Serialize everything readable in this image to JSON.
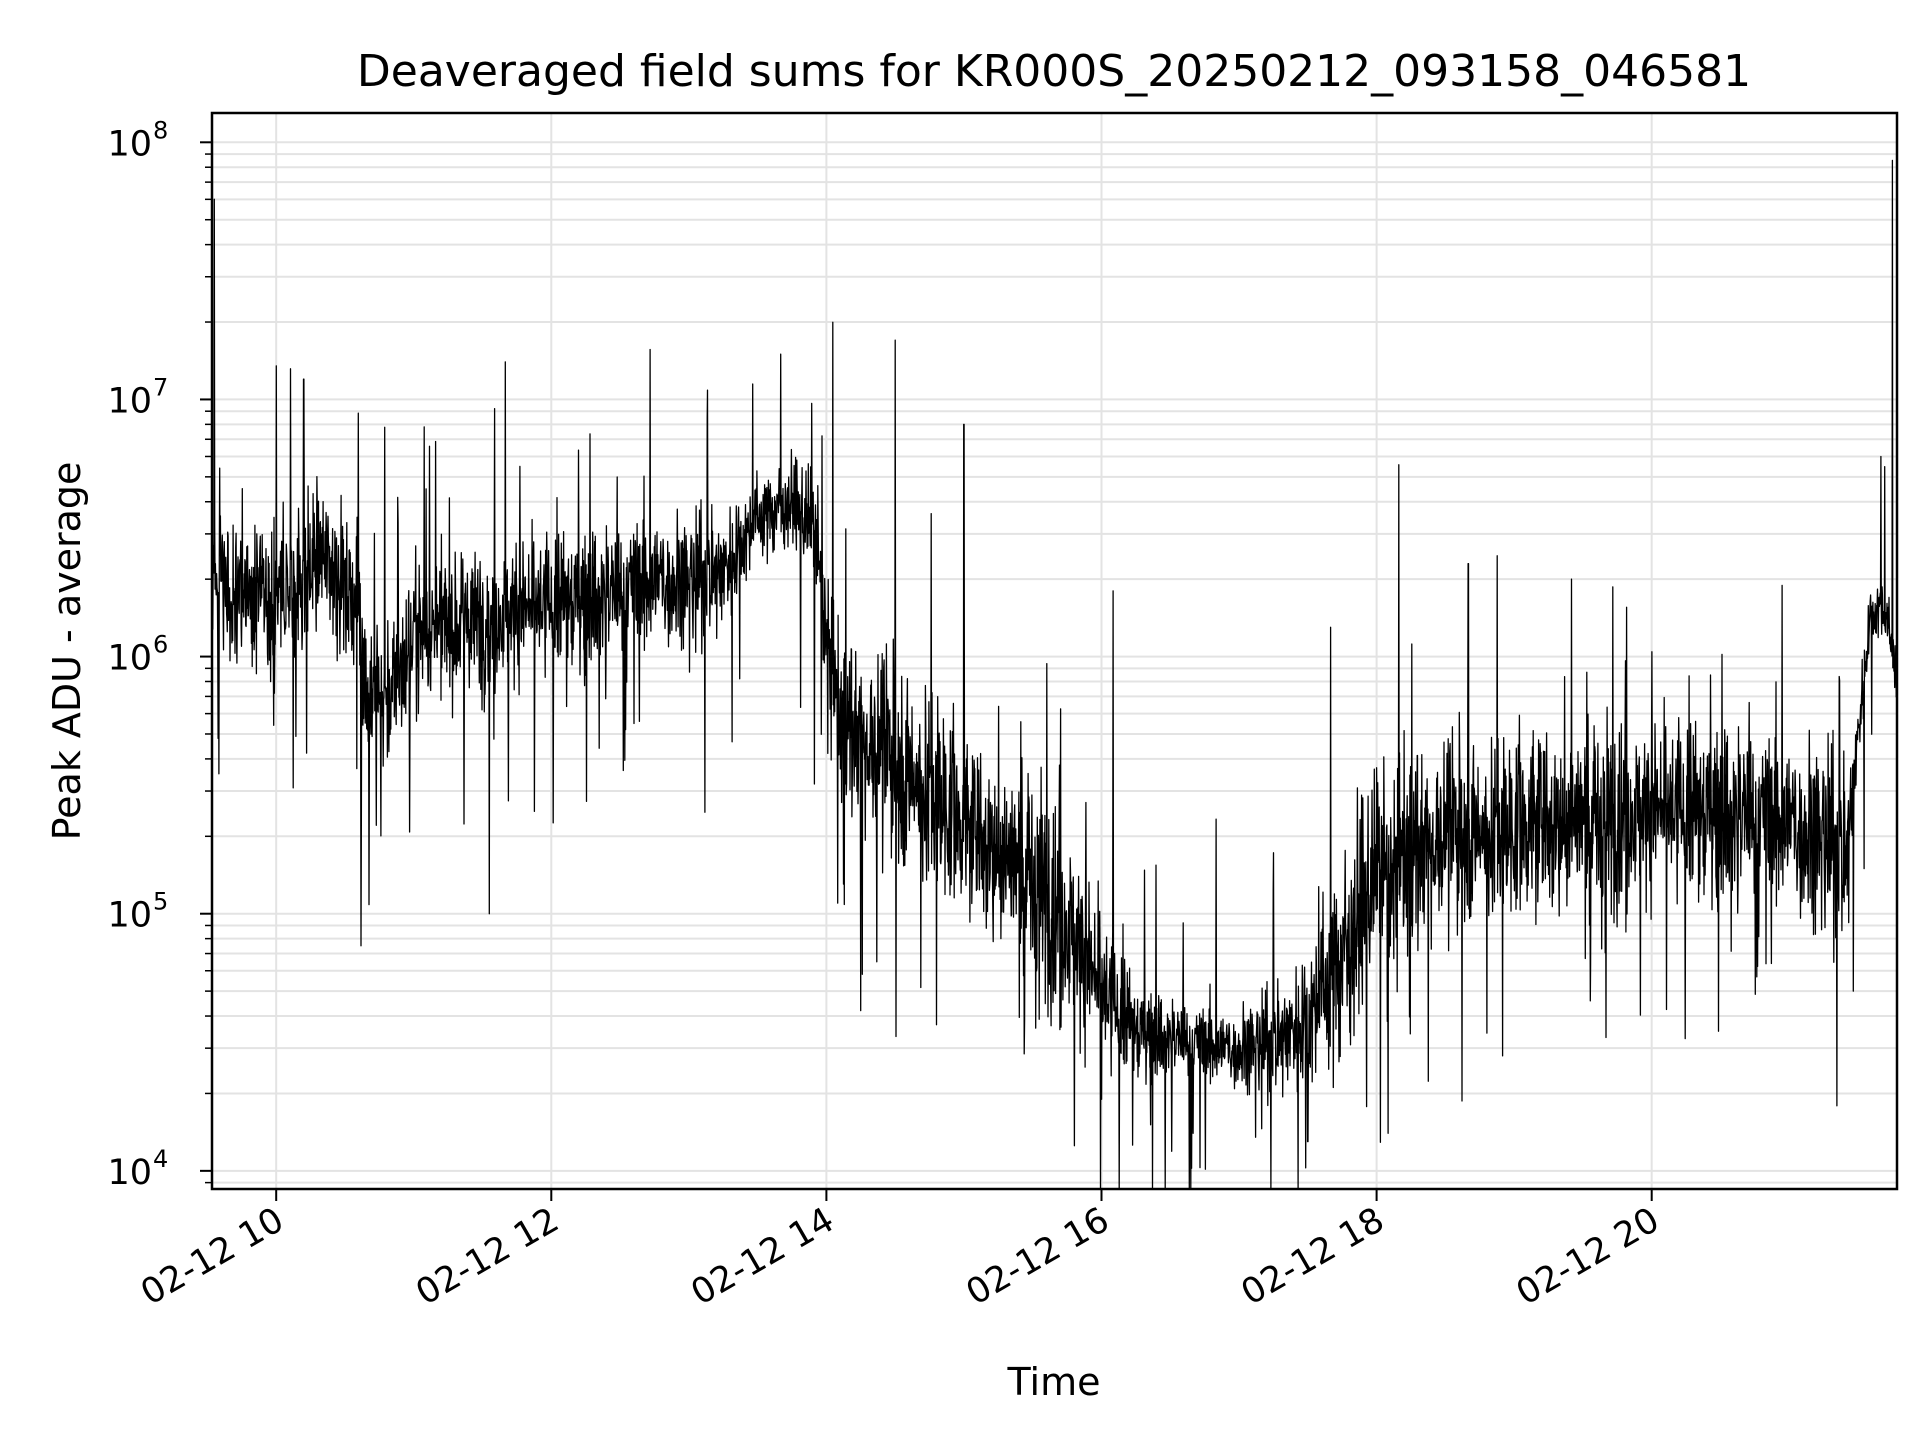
{
  "chart_data": {
    "type": "line",
    "title": "Deaveraged field sums for KR000S_20250212_093158_046581",
    "xlabel": "Time",
    "ylabel": "Peak ADU - average",
    "yscale": "log",
    "ylim": [
      8500,
      130000000
    ],
    "xlim": [
      "02-12 09:32",
      "02-12 21:47"
    ],
    "grid": true,
    "legend": "none",
    "line_color": "#000000",
    "x_ticks": [
      {
        "label": "02-12 10",
        "at": "02-12 10:00"
      },
      {
        "label": "02-12 12",
        "at": "02-12 12:00"
      },
      {
        "label": "02-12 14",
        "at": "02-12 14:00"
      },
      {
        "label": "02-12 16",
        "at": "02-12 16:00"
      },
      {
        "label": "02-12 18",
        "at": "02-12 18:00"
      },
      {
        "label": "02-12 20",
        "at": "02-12 20:00"
      }
    ],
    "y_ticks": [
      {
        "base": "10",
        "exp": "4",
        "value": 10000
      },
      {
        "base": "10",
        "exp": "5",
        "value": 100000
      },
      {
        "base": "10",
        "exp": "6",
        "value": 1000000
      },
      {
        "base": "10",
        "exp": "7",
        "value": 10000000
      },
      {
        "base": "10",
        "exp": "8",
        "value": 100000000
      }
    ],
    "series": [
      {
        "x": [
          "02-12 09:32",
          "02-12 09:33",
          "02-12 09:34",
          "02-12 09:40",
          "02-12 09:50",
          "02-12 10:00",
          "02-12 10:10",
          "02-12 10:20",
          "02-12 10:30",
          "02-12 10:36",
          "02-12 10:40",
          "02-12 10:50",
          "02-12 11:00",
          "02-12 11:15",
          "02-12 11:30",
          "02-12 11:45",
          "02-12 12:00",
          "02-12 12:15",
          "02-12 12:30",
          "02-12 12:45",
          "02-12 13:00",
          "02-12 13:15",
          "02-12 13:30",
          "02-12 13:45",
          "02-12 13:55",
          "02-12 14:05",
          "02-12 14:20",
          "02-12 14:35",
          "02-12 14:50",
          "02-12 15:00",
          "02-12 15:15",
          "02-12 15:30",
          "02-12 15:45",
          "02-12 16:00",
          "02-12 16:15",
          "02-12 16:30",
          "02-12 16:45",
          "02-12 17:00",
          "02-12 17:15",
          "02-12 17:30",
          "02-12 17:45",
          "02-12 18:00",
          "02-12 18:15",
          "02-12 18:30",
          "02-12 18:45",
          "02-12 19:00",
          "02-12 19:15",
          "02-12 19:30",
          "02-12 19:45",
          "02-12 20:00",
          "02-12 20:15",
          "02-12 20:30",
          "02-12 20:45",
          "02-12 21:00",
          "02-12 21:15",
          "02-12 21:25",
          "02-12 21:30",
          "02-12 21:35",
          "02-12 21:40",
          "02-12 21:44",
          "02-12 21:45",
          "02-12 21:46",
          "02-12 21:47"
        ],
        "center": [
          1800000,
          1900000,
          2000000,
          1800000,
          1700000,
          1600000,
          2000000,
          2500000,
          2000000,
          1500000,
          700000,
          700000,
          1200000,
          1300000,
          1400000,
          1500000,
          1600000,
          1700000,
          1800000,
          2000000,
          2000000,
          2200000,
          3500000,
          4000000,
          3000000,
          600000,
          450000,
          350000,
          280000,
          220000,
          180000,
          140000,
          90000,
          50000,
          35000,
          33000,
          31000,
          30000,
          32000,
          40000,
          70000,
          140000,
          180000,
          200000,
          210000,
          220000,
          230000,
          240000,
          240000,
          250000,
          250000,
          250000,
          240000,
          230000,
          200000,
          170000,
          500000,
          1400000,
          1600000,
          1200000,
          1100000,
          1000000,
          800000
        ],
        "spread": [
          0.4,
          0.4,
          0.35,
          0.35,
          0.35,
          0.4,
          0.4,
          0.35,
          0.35,
          0.35,
          0.35,
          0.35,
          0.35,
          0.35,
          0.35,
          0.35,
          0.35,
          0.35,
          0.35,
          0.35,
          0.3,
          0.3,
          0.2,
          0.2,
          0.3,
          0.4,
          0.45,
          0.5,
          0.5,
          0.4,
          0.45,
          0.5,
          0.5,
          0.4,
          0.25,
          0.2,
          0.2,
          0.2,
          0.25,
          0.35,
          0.5,
          0.5,
          0.5,
          0.45,
          0.45,
          0.45,
          0.45,
          0.45,
          0.45,
          0.45,
          0.45,
          0.45,
          0.45,
          0.45,
          0.45,
          0.45,
          0.2,
          0.15,
          0.15,
          0.15,
          0.15,
          0.15,
          0.15
        ],
        "spikes": [
          {
            "x": "02-12 09:33",
            "y": 60000000
          },
          {
            "x": "02-12 09:35",
            "y": 350000
          },
          {
            "x": "02-12 10:00",
            "y": 13500000
          },
          {
            "x": "02-12 10:12",
            "y": 12000000
          },
          {
            "x": "02-12 10:37",
            "y": 75000
          },
          {
            "x": "02-12 11:33",
            "y": 100000
          },
          {
            "x": "02-12 11:40",
            "y": 14000000
          },
          {
            "x": "02-12 13:40",
            "y": 15000000
          },
          {
            "x": "02-12 14:05",
            "y": 110000
          },
          {
            "x": "02-12 14:15",
            "y": 42000
          },
          {
            "x": "02-12 14:22",
            "y": 65000
          },
          {
            "x": "02-12 14:30",
            "y": 17000000
          },
          {
            "x": "02-12 14:48",
            "y": 37000
          },
          {
            "x": "02-12 15:00",
            "y": 8000000
          },
          {
            "x": "02-12 16:00",
            "y": 19000
          },
          {
            "x": "02-12 16:05",
            "y": 1800000
          },
          {
            "x": "02-12 16:40",
            "y": 14000
          },
          {
            "x": "02-12 17:30",
            "y": 13000
          },
          {
            "x": "02-12 17:40",
            "y": 1300000
          },
          {
            "x": "02-12 18:05",
            "y": 14000
          },
          {
            "x": "02-12 18:40",
            "y": 2300000
          },
          {
            "x": "02-12 18:55",
            "y": 28000
          },
          {
            "x": "02-12 19:25",
            "y": 2000000
          },
          {
            "x": "02-12 19:40",
            "y": 33000
          },
          {
            "x": "02-12 21:28",
            "y": 50000
          },
          {
            "x": "02-12 21:40",
            "y": 6000000
          },
          {
            "x": "02-12 21:45",
            "y": 85000000
          },
          {
            "x": "02-12 21:47",
            "y": 420000
          }
        ]
      }
    ]
  }
}
